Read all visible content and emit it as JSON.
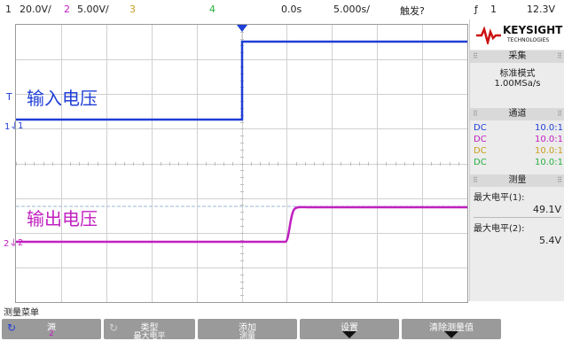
{
  "topbar": {
    "ch1_num": "1",
    "ch1_scale": "20.0V/",
    "ch2_num": "2",
    "ch2_scale": "5.00V/",
    "ch3_num": "3",
    "ch4_num": "4",
    "time_offset": "0.0s",
    "timebase": "5.000s/",
    "trigger_state": "触发?",
    "trigger_source": "1",
    "trigger_level": "12.3V"
  },
  "brand": {
    "name": "KEYSIGHT",
    "sub": "TECHNOLOGIES"
  },
  "acquisition": {
    "header": "采集",
    "mode": "标准模式",
    "rate": "1.00MSa/s"
  },
  "channels": {
    "header": "通道",
    "rows": [
      {
        "coupling": "DC",
        "ratio": "10.0:1",
        "color": "#1f3fd6"
      },
      {
        "coupling": "DC",
        "ratio": "10.0:1",
        "color": "#c020c0"
      },
      {
        "coupling": "DC",
        "ratio": "10.0:1",
        "color": "#c8a020"
      },
      {
        "coupling": "DC",
        "ratio": "10.0:1",
        "color": "#28b040"
      }
    ]
  },
  "measurements": {
    "header": "测量",
    "items": [
      {
        "label": "最大电平(1):",
        "value": "49.1V"
      },
      {
        "label": "最大电平(2):",
        "value": "5.4V"
      }
    ]
  },
  "waveform_labels": {
    "input": "输入电压",
    "output": "输出电压",
    "marker1": "1",
    "marker2": "2"
  },
  "menu": {
    "title": "测量菜单",
    "buttons": [
      {
        "line1": "源",
        "line2": "2"
      },
      {
        "line1": "类型",
        "line2": "最大电平"
      },
      {
        "line1": "添加",
        "line2": "测量"
      },
      {
        "line1": "设置",
        "line2": ""
      },
      {
        "line1": "清除测量值",
        "line2": ""
      }
    ]
  },
  "colors": {
    "ch1": "#1f3fd6",
    "ch2": "#c020c0",
    "ch3": "#c8a020",
    "ch4": "#28b040",
    "trigger_marker": "#1f3fd6",
    "ref_line": "#9bb7d6"
  }
}
